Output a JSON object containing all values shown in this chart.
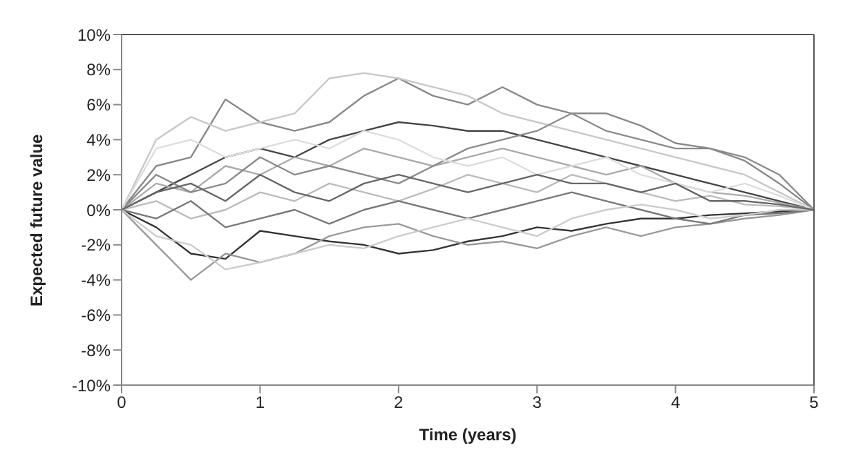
{
  "chart_data": {
    "type": "line",
    "xlabel": "Time (years)",
    "ylabel": "Expected future value",
    "grid": false,
    "marker": "none",
    "line_style": "solid",
    "x": [
      0,
      0.25,
      0.5,
      0.75,
      1,
      1.25,
      1.5,
      1.75,
      2,
      2.25,
      2.5,
      2.75,
      3,
      3.25,
      3.5,
      3.75,
      4,
      4.25,
      4.5,
      4.75,
      5
    ],
    "xlim": [
      0,
      5
    ],
    "xticks": [
      0,
      1,
      2,
      3,
      4,
      5
    ],
    "ylim": [
      -10,
      10
    ],
    "yticks": [
      {
        "value": -10,
        "label": "-10%"
      },
      {
        "value": -8,
        "label": "-8%"
      },
      {
        "value": -6,
        "label": "-6%"
      },
      {
        "value": -4,
        "label": "-4%"
      },
      {
        "value": -2,
        "label": "-2%"
      },
      {
        "value": 0,
        "label": "0%"
      },
      {
        "value": 2,
        "label": "2%"
      },
      {
        "value": 4,
        "label": "4%"
      },
      {
        "value": 6,
        "label": "6%"
      },
      {
        "value": 8,
        "label": "8%"
      },
      {
        "value": 10,
        "label": "10%"
      }
    ],
    "series": [
      {
        "color": "#888888",
        "values": [
          0,
          2.5,
          3,
          6.3,
          5,
          4.5,
          5,
          6.5,
          7.5,
          6.5,
          6,
          7,
          6,
          5.5,
          5.5,
          4.8,
          3.8,
          3.5,
          2.8,
          1.5,
          0
        ]
      },
      {
        "color": "#c8c8c8",
        "values": [
          0,
          4,
          5.3,
          4.5,
          5,
          5.5,
          7.5,
          7.8,
          7.5,
          7,
          6.5,
          5.5,
          5,
          4.5,
          4,
          3.5,
          3,
          2.5,
          2,
          1,
          0
        ]
      },
      {
        "color": "#333333",
        "values": [
          0,
          -1,
          -2.5,
          -2.8,
          -1.2,
          -1.5,
          -1.8,
          -2,
          -2.5,
          -2.3,
          -1.8,
          -1.5,
          -1,
          -1.2,
          -0.8,
          -0.5,
          -0.5,
          -0.3,
          -0.2,
          -0.1,
          0
        ]
      },
      {
        "color": "#999999",
        "values": [
          0,
          -2,
          -4,
          -2.5,
          -3,
          -2.5,
          -1.5,
          -1,
          -0.8,
          -1.5,
          -2,
          -1.8,
          -2.2,
          -1.5,
          -1,
          -1.5,
          -1,
          -0.8,
          -0.5,
          -0.3,
          0
        ]
      },
      {
        "color": "#444444",
        "values": [
          0,
          1,
          2,
          3,
          3.5,
          3,
          4,
          4.5,
          5,
          4.8,
          4.5,
          4.5,
          4,
          3.5,
          3,
          2.5,
          2,
          1.5,
          1,
          0.5,
          0
        ]
      },
      {
        "color": "#bbbbbb",
        "values": [
          0,
          0.5,
          -0.5,
          0,
          1,
          0.5,
          1.5,
          1,
          0.5,
          1.2,
          2,
          1.5,
          1,
          2,
          1.5,
          1,
          0.5,
          0.8,
          0.3,
          0.2,
          0
        ]
      },
      {
        "color": "#aaaaaa",
        "values": [
          0,
          1.5,
          1,
          2.5,
          2,
          3,
          2.5,
          3.5,
          3,
          2.5,
          3,
          3.5,
          3,
          2.5,
          2,
          2.5,
          1.5,
          1,
          0.8,
          0.4,
          0
        ]
      },
      {
        "color": "#777777",
        "values": [
          0,
          -0.5,
          0.5,
          -1,
          -0.5,
          0,
          -0.8,
          0,
          0.5,
          0,
          -0.5,
          0,
          0.5,
          1,
          0.5,
          0,
          -0.5,
          -0.8,
          -0.3,
          -0.2,
          0
        ]
      },
      {
        "color": "#8a8a8a",
        "values": [
          0,
          2,
          1,
          1.5,
          3,
          2,
          2.5,
          2,
          1.5,
          2.5,
          3.5,
          4,
          4.5,
          5.5,
          4.5,
          4,
          3.5,
          3.5,
          3,
          2,
          0
        ]
      },
      {
        "color": "#cccccc",
        "values": [
          0,
          -1.5,
          -2,
          -3.4,
          -3,
          -2.5,
          -2,
          -2.2,
          -1.5,
          -1,
          -0.5,
          -1,
          -1.5,
          -0.5,
          0,
          0.3,
          0,
          -0.5,
          -0.3,
          0,
          0
        ]
      },
      {
        "color": "#dddddd",
        "values": [
          0,
          3.5,
          4,
          3,
          3.5,
          4,
          3.5,
          4.5,
          4,
          3,
          2.5,
          3,
          2,
          2.5,
          3,
          2,
          1.5,
          1,
          1.5,
          0.8,
          0
        ]
      },
      {
        "color": "#666666",
        "values": [
          0,
          1,
          1.5,
          0.5,
          2,
          1,
          0.5,
          1.5,
          2,
          1.5,
          1,
          1.5,
          2,
          1.5,
          1.5,
          1,
          1.5,
          0.5,
          0.5,
          0.3,
          0
        ]
      }
    ]
  }
}
